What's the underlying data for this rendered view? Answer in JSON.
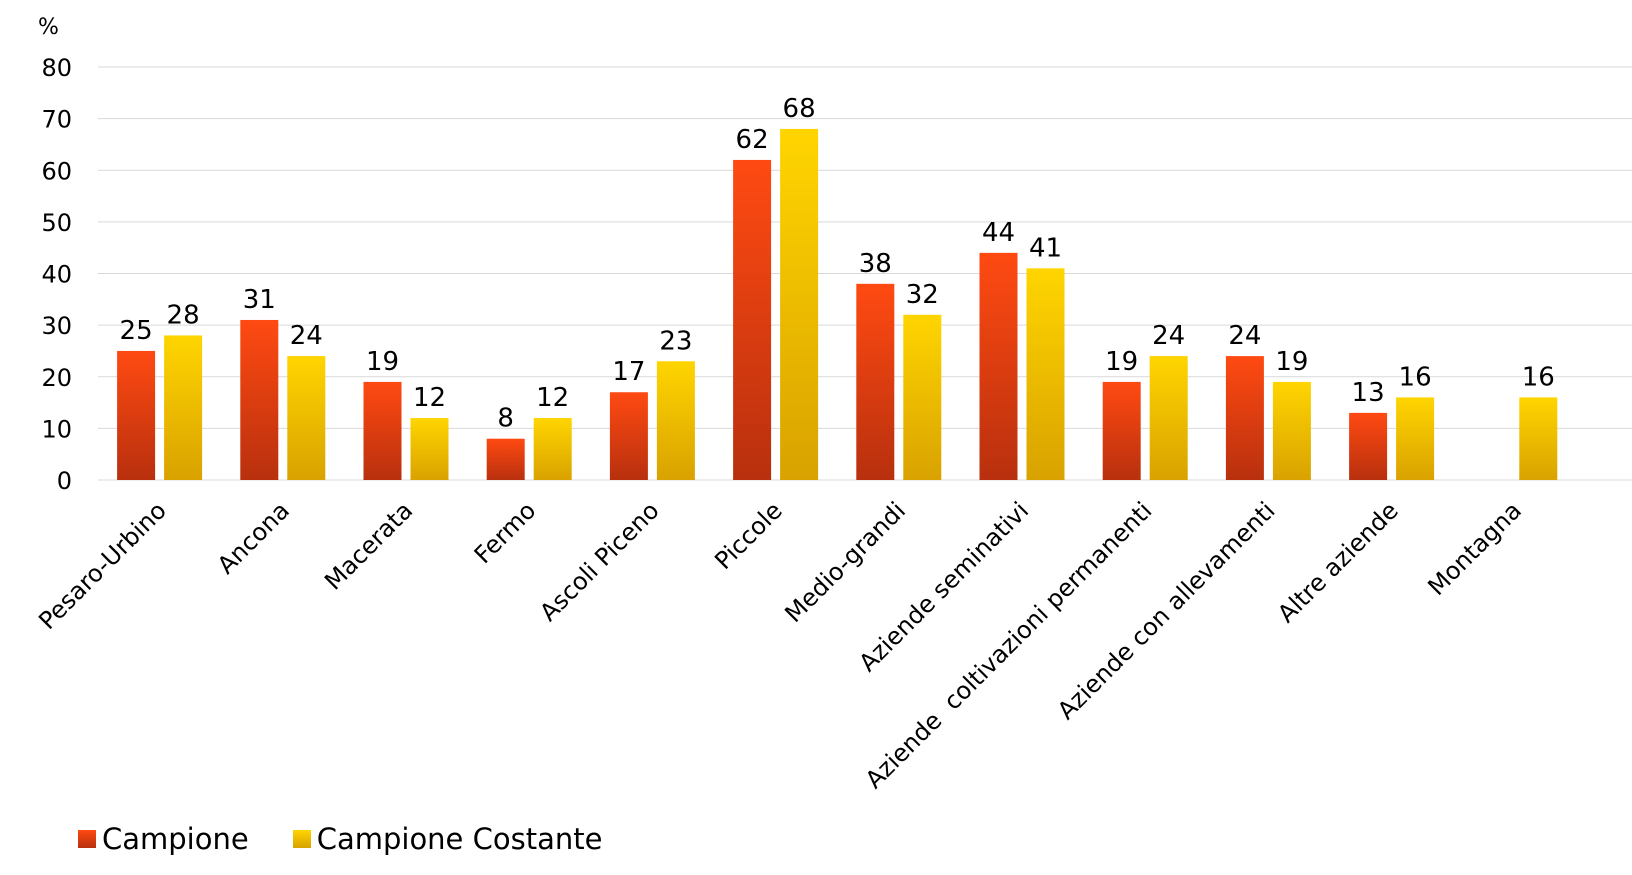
{
  "chart_data": {
    "type": "bar",
    "unit_label": "%",
    "ylim": [
      0,
      80
    ],
    "yticks": [
      0,
      10,
      20,
      30,
      40,
      50,
      60,
      70,
      80
    ],
    "grid": true,
    "legend_position": "bottom-left",
    "categories": [
      "Pesaro-Urbino",
      "Ancona",
      "Macerata",
      "Fermo",
      "Ascoli Piceno",
      "Piccole",
      "Medio-grandi",
      "Aziende seminativi",
      "Aziende  coltivazioni permanenti",
      "Aziende con allevamenti",
      "Altre aziende",
      "Montagna"
    ],
    "series": [
      {
        "name": "Campione",
        "color": "#E8471A",
        "color_top": "#FF4A12",
        "color_bottom": "#B8300E",
        "values": [
          25,
          31,
          19,
          8,
          17,
          62,
          38,
          44,
          19,
          24,
          13,
          null
        ],
        "labels": [
          "25",
          "31",
          "19",
          "8",
          "17",
          "62",
          "38",
          "44",
          "19",
          "24",
          "13",
          ""
        ]
      },
      {
        "name": "Campione Costante",
        "color": "#F5C400",
        "color_top": "#FFD500",
        "color_bottom": "#D9A200",
        "values": [
          28,
          24,
          12,
          12,
          23,
          68,
          32,
          41,
          24,
          19,
          16,
          16
        ],
        "labels": [
          "28",
          "24",
          "12",
          "12",
          "23",
          "68",
          "32",
          "41",
          "24",
          "19",
          "16",
          "16"
        ]
      }
    ]
  }
}
